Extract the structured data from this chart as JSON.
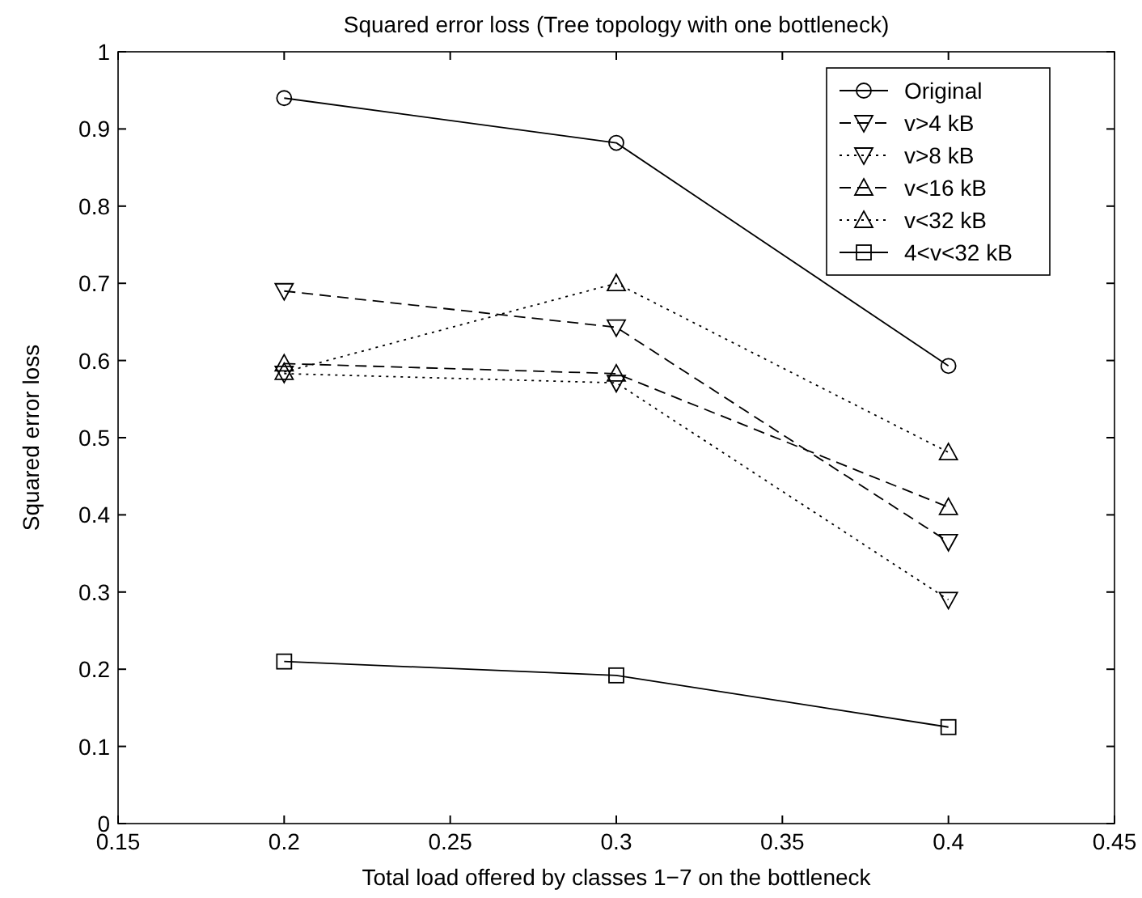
{
  "chart_data": {
    "type": "line",
    "title": "Squared error loss (Tree topology with one bottleneck)",
    "xlabel": "Total load offered by classes 1−7 on the bottleneck",
    "ylabel": "Squared error loss",
    "x": [
      0.2,
      0.3,
      0.4
    ],
    "xlim": [
      0.15,
      0.45
    ],
    "xticks": [
      0.15,
      0.2,
      0.25,
      0.3,
      0.35,
      0.4,
      0.45
    ],
    "ylim": [
      0,
      1
    ],
    "yticks": [
      0,
      0.1,
      0.2,
      0.3,
      0.4,
      0.5,
      0.6,
      0.7,
      0.8,
      0.9,
      1
    ],
    "grid": false,
    "legend": "top right",
    "series": [
      {
        "name": "Original",
        "color": "#000000",
        "values": [
          0.94,
          0.882,
          0.593
        ],
        "marker": "circle",
        "line_style": "solid"
      },
      {
        "name": "v>4 kB",
        "color": "#000000",
        "values": [
          0.69,
          0.643,
          0.365
        ],
        "marker": "triangle-down",
        "line_style": "dashed"
      },
      {
        "name": "v>8 kB",
        "color": "#000000",
        "values": [
          0.583,
          0.571,
          0.29
        ],
        "marker": "triangle-down",
        "line_style": "dotted"
      },
      {
        "name": "v<16 kB",
        "color": "#000000",
        "values": [
          0.596,
          0.583,
          0.41
        ],
        "marker": "triangle",
        "line_style": "dashed"
      },
      {
        "name": "v<32 kB",
        "color": "#000000",
        "values": [
          0.585,
          0.7,
          0.481
        ],
        "marker": "triangle",
        "line_style": "dotted"
      },
      {
        "name": "4<v<32 kB",
        "color": "#000000",
        "values": [
          0.21,
          0.192,
          0.125
        ],
        "marker": "square",
        "line_style": "solid"
      }
    ]
  }
}
